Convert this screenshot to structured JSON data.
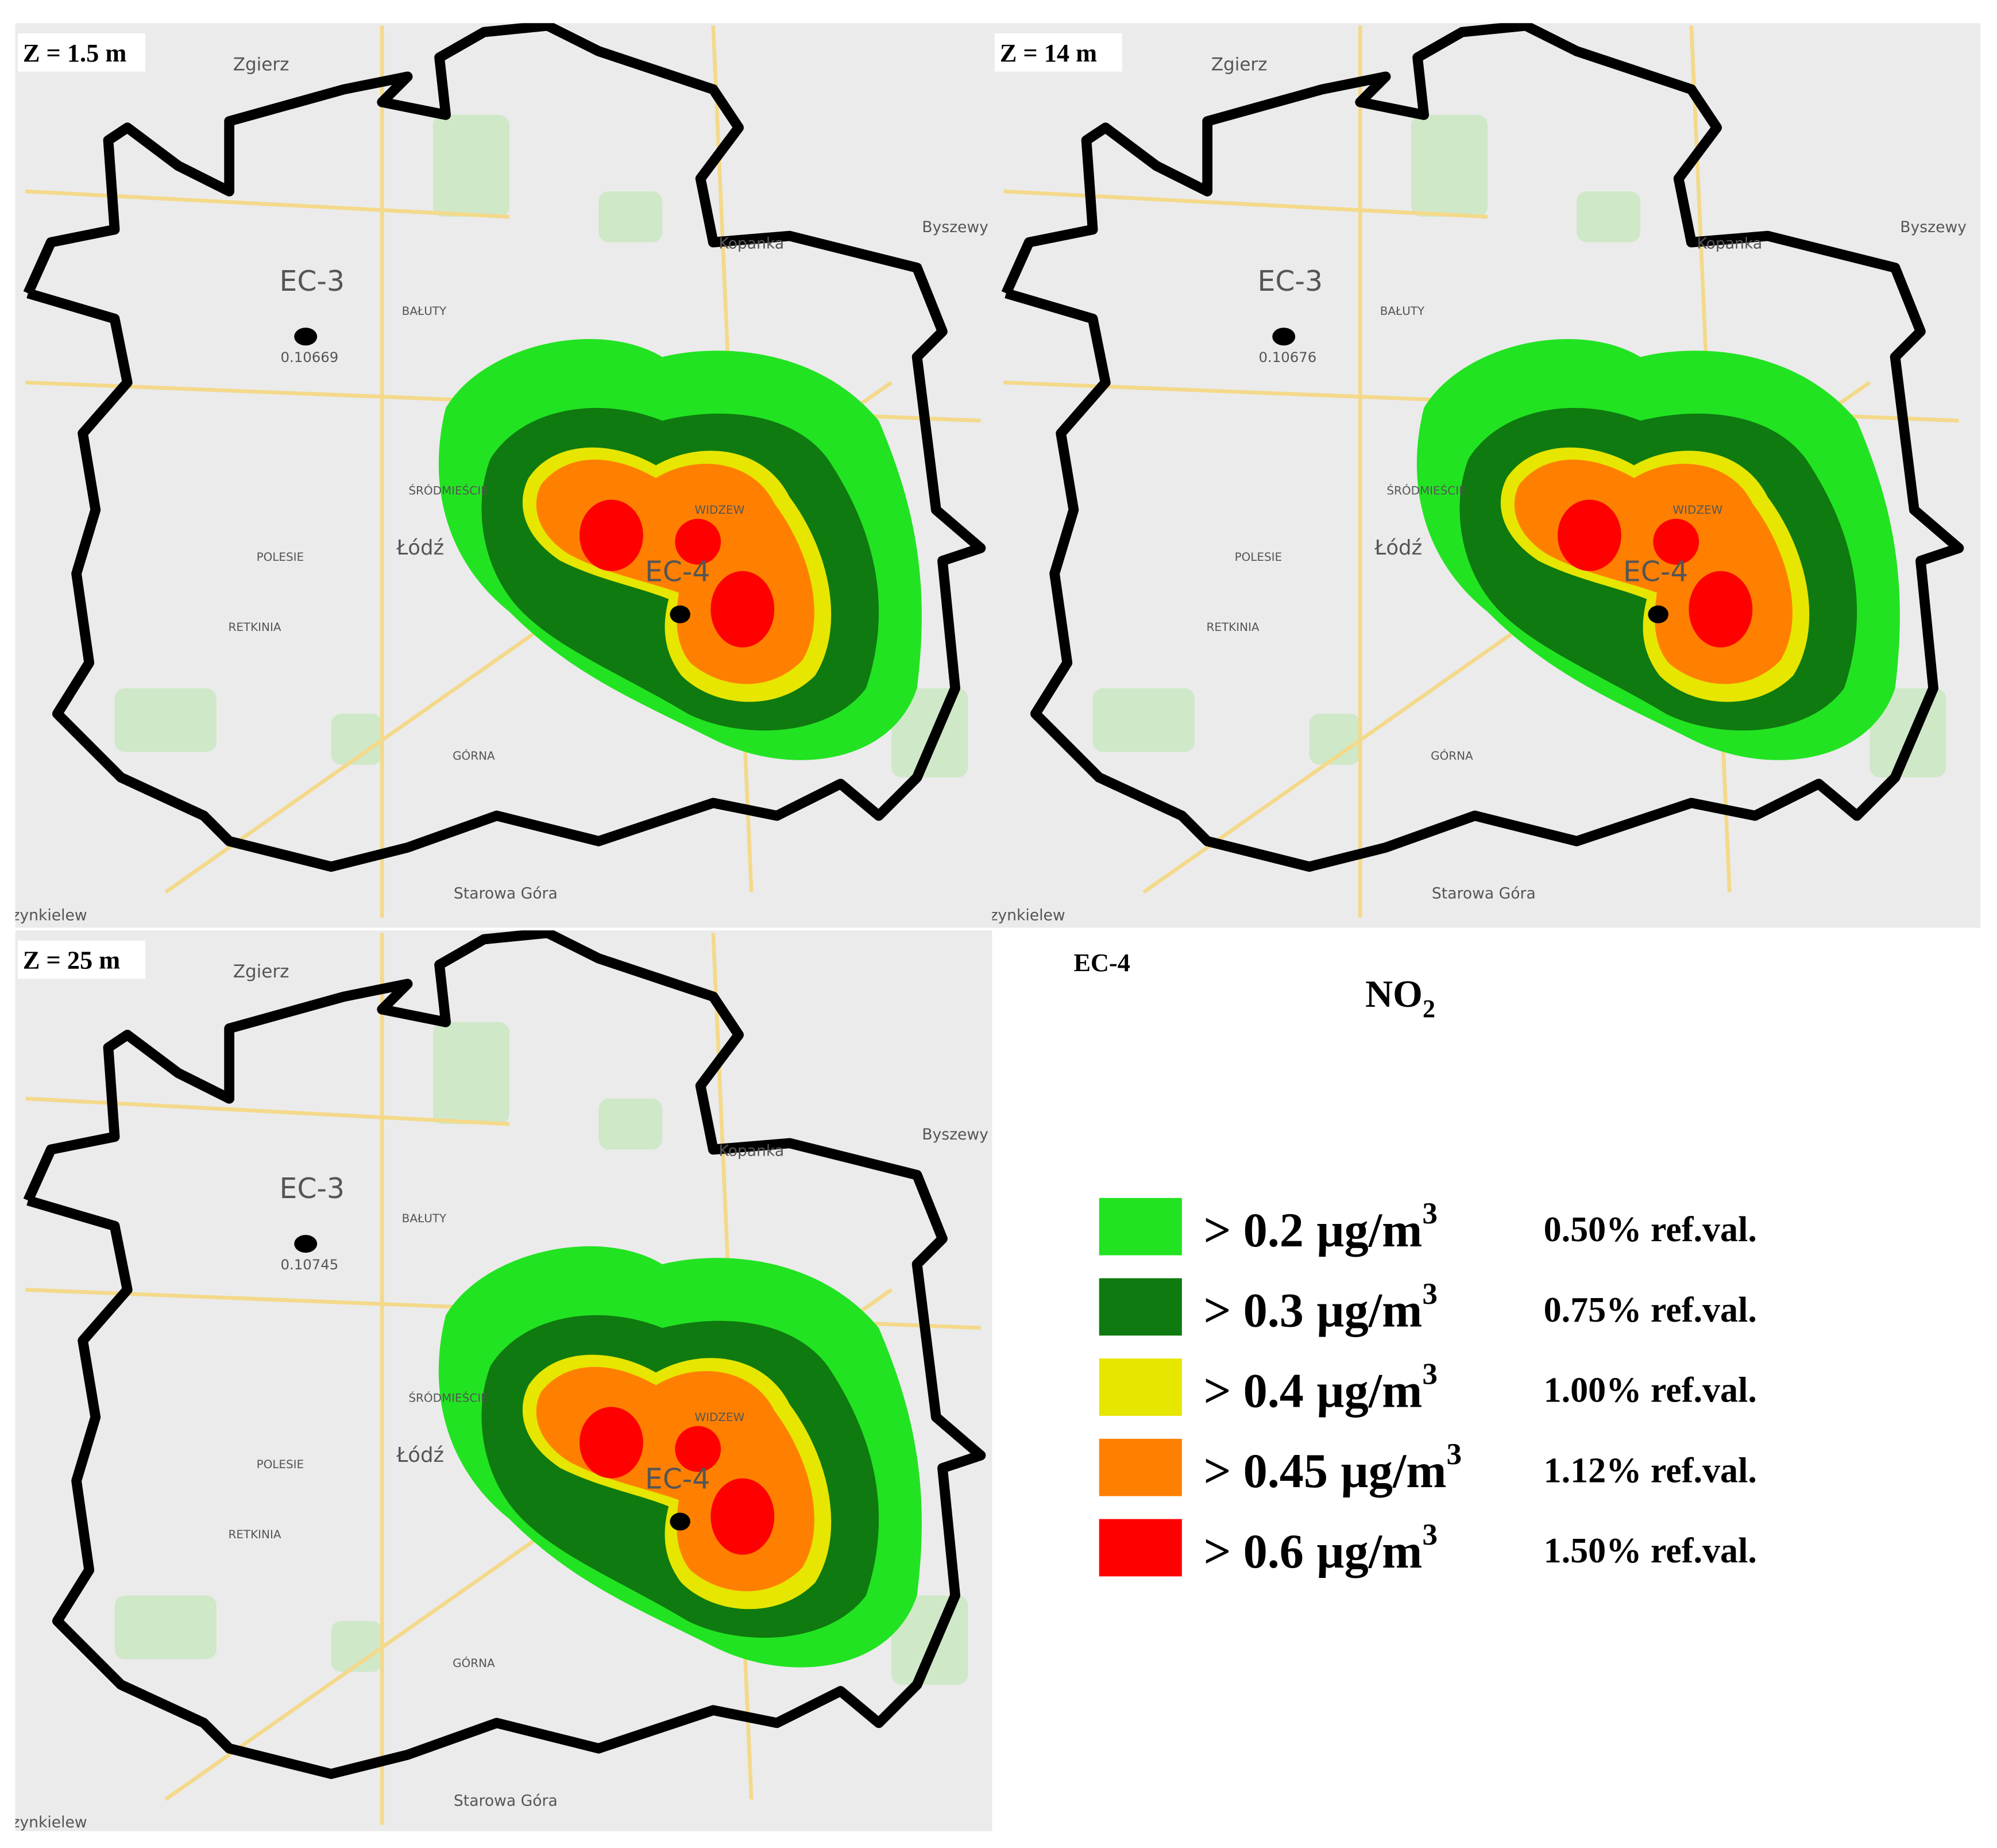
{
  "panels": [
    {
      "label": "Z = 1.5 m",
      "ec3_value": "0.10669"
    },
    {
      "label": "Z = 14 m",
      "ec3_value": "0.10676"
    },
    {
      "label": "Z = 25 m",
      "ec3_value": "0.10745"
    }
  ],
  "map_labels": [
    "Zgierz",
    "EC-3",
    "EC-4",
    "Łódź",
    "BAŁUTY",
    "ŚRÓDMIEŚCIE",
    "POLESIE",
    "RETKINIA",
    "GÓRNA",
    "WIDZEW",
    "Starowa Góra",
    "Szynkielew",
    "Byszewy",
    "Kopanka"
  ],
  "legend": {
    "source": "EC-4",
    "pollutant": "NO",
    "pollutant_subscript": "2",
    "unit": "µg/m",
    "unit_power": "3",
    "items": [
      {
        "threshold": "> 0.2",
        "percent": "0.50% ref.val.",
        "color": "#22e322"
      },
      {
        "threshold": "> 0.3",
        "percent": "0.75% ref.val.",
        "color": "#0f7a0f"
      },
      {
        "threshold": "> 0.4",
        "percent": "1.00% ref.val.",
        "color": "#e6e600"
      },
      {
        "threshold": "> 0.45",
        "percent": "1.12% ref.val.",
        "color": "#ff8000"
      },
      {
        "threshold": "> 0.6",
        "percent": "1.50% ref.val.",
        "color": "#ff0000"
      }
    ]
  }
}
